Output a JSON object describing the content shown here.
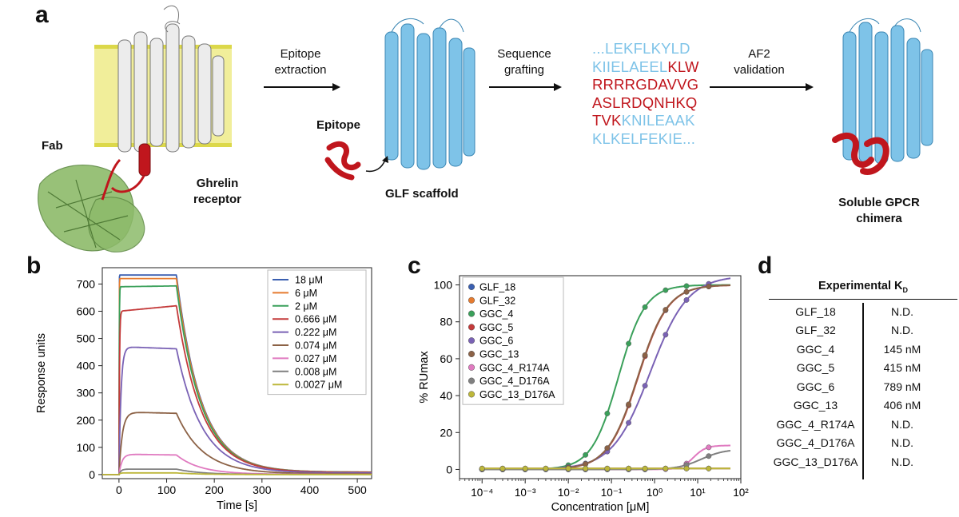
{
  "panel_a": {
    "label": "a",
    "fab_label": "Fab",
    "receptor_label": [
      "Ghrelin",
      "receptor"
    ],
    "step1": [
      "Epitope",
      "extraction"
    ],
    "epitope_label": "Epitope",
    "scaffold_label": "GLF scaffold",
    "step2": [
      "Sequence",
      "grafting"
    ],
    "sequence_lines": [
      [
        {
          "t": "...LEKFLKYLD",
          "c": "b"
        }
      ],
      [
        {
          "t": "KIIELAEEL",
          "c": "b"
        },
        {
          "t": "KLW",
          "c": "r"
        }
      ],
      [
        {
          "t": "RRRRGDAVVG",
          "c": "r"
        }
      ],
      [
        {
          "t": "ASLRDQNHKQ",
          "c": "r"
        }
      ],
      [
        {
          "t": "TVK",
          "c": "r"
        },
        {
          "t": "KNILEAAK",
          "c": "b"
        }
      ],
      [
        {
          "t": "KLKELFEKIE...",
          "c": "b"
        }
      ]
    ],
    "step3": [
      "AF2",
      "validation"
    ],
    "chimera_label": [
      "Soluble GPCR",
      "chimera"
    ],
    "colors": {
      "membrane": "#f1ee9a",
      "receptor": "#e6e6e6",
      "epitope": "#c0161d",
      "scaffold": "#7ec3e8",
      "fab": "#8dbb6a"
    }
  },
  "chart_data": [
    {
      "panel": "b",
      "type": "line",
      "xlabel": "Time [s]",
      "ylabel": "Response units",
      "xlim": [
        -35,
        530
      ],
      "ylim": [
        -15,
        760
      ],
      "xticks": [
        0,
        100,
        200,
        300,
        400,
        500
      ],
      "yticks": [
        0,
        100,
        200,
        300,
        400,
        500,
        600,
        700
      ],
      "legend_position": "top-right",
      "injection_end_s": 120,
      "series": [
        {
          "name": "18 μM",
          "color": "#3a5fb0",
          "plateau": 733,
          "end": 733,
          "rise_k": 0.6,
          "decay_k": 0.0195
        },
        {
          "name": "6 μM",
          "color": "#e57b2f",
          "plateau": 720,
          "end": 720,
          "rise_k": 0.45,
          "decay_k": 0.0195
        },
        {
          "name": "2 μM",
          "color": "#3aa05a",
          "plateau": 690,
          "end": 693,
          "rise_k": 0.25,
          "decay_k": 0.0195
        },
        {
          "name": "0.666 μM",
          "color": "#c43a3a",
          "plateau": 600,
          "end": 620,
          "rise_k": 0.12,
          "decay_k": 0.019
        },
        {
          "name": "0.222 μM",
          "color": "#7a62b5",
          "plateau": 470,
          "end": 462,
          "rise_k": 0.03,
          "decay_k": 0.0185
        },
        {
          "name": "0.074 μM",
          "color": "#8c6246",
          "plateau": 230,
          "end": 225,
          "rise_k": 0.018,
          "decay_k": 0.018
        },
        {
          "name": "0.027 μM",
          "color": "#e07ac0",
          "plateau": 75,
          "end": 72,
          "rise_k": 0.02,
          "decay_k": 0.02
        },
        {
          "name": "0.008 μM",
          "color": "#808080",
          "plateau": 20,
          "end": 20,
          "rise_k": 0.03,
          "decay_k": 0.02
        },
        {
          "name": "0.0027 μM",
          "color": "#bdb73a",
          "plateau": 6,
          "end": 6,
          "rise_k": 0.05,
          "decay_k": 0.02
        }
      ]
    },
    {
      "panel": "c",
      "type": "scatter",
      "xlabel": "Concentration [μM]",
      "ylabel": "% RUmax",
      "x_scale": "log",
      "xlim": [
        3e-05,
        100
      ],
      "ylim": [
        -5,
        105
      ],
      "yticks": [
        0,
        20,
        40,
        60,
        80,
        100
      ],
      "xtick_labels": [
        "10⁻⁴",
        "10⁻³",
        "10⁻²",
        "10⁻¹",
        "10⁰",
        "10¹",
        "10²"
      ],
      "xtick_values": [
        0.0001,
        0.001,
        0.01,
        0.1,
        1,
        10,
        100
      ],
      "legend_position": "top-left",
      "series": [
        {
          "name": "GLF_18",
          "color": "#3a5fb0",
          "ec50": 1000,
          "top": 0,
          "hill": 1
        },
        {
          "name": "GLF_32",
          "color": "#e57b2f",
          "ec50": 1000,
          "top": 0,
          "hill": 1
        },
        {
          "name": "GGC_4",
          "color": "#3aa05a",
          "ec50": 0.145,
          "top": 100,
          "hill": 1.4
        },
        {
          "name": "GGC_5",
          "color": "#c43a3a",
          "ec50": 0.415,
          "top": 100,
          "hill": 1.25
        },
        {
          "name": "GGC_6",
          "color": "#7a62b5",
          "ec50": 0.789,
          "top": 105,
          "hill": 1.0
        },
        {
          "name": "GGC_13",
          "color": "#8c6246",
          "ec50": 0.406,
          "top": 100,
          "hill": 1.25
        },
        {
          "name": "GGC_4_R174A",
          "color": "#e07ac0",
          "ec50": 8,
          "top": 13,
          "hill": 3
        },
        {
          "name": "GGC_4_D176A",
          "color": "#808080",
          "ec50": 12,
          "top": 11,
          "hill": 1.6
        },
        {
          "name": "GGC_13_D176A",
          "color": "#bdb73a",
          "ec50": 1000,
          "top": 0,
          "hill": 1
        }
      ],
      "sample_concentrations": [
        0.0001,
        0.0003,
        0.001,
        0.003,
        0.01,
        0.025,
        0.08,
        0.25,
        0.6,
        1.8,
        5.5,
        18
      ]
    },
    {
      "panel": "d",
      "type": "table",
      "header": "Experimental K",
      "header_sub": "D",
      "rows": [
        [
          "GLF_18",
          "N.D."
        ],
        [
          "GLF_32",
          "N.D."
        ],
        [
          "GGC_4",
          "145 nM"
        ],
        [
          "GGC_5",
          "415 nM"
        ],
        [
          "GGC_6",
          "789 nM"
        ],
        [
          "GGC_13",
          "406 nM"
        ],
        [
          "GGC_4_R174A",
          "N.D."
        ],
        [
          "GGC_4_D176A",
          "N.D."
        ],
        [
          "GGC_13_D176A",
          "N.D."
        ]
      ]
    }
  ],
  "panel_labels": {
    "b": "b",
    "c": "c",
    "d": "d"
  }
}
